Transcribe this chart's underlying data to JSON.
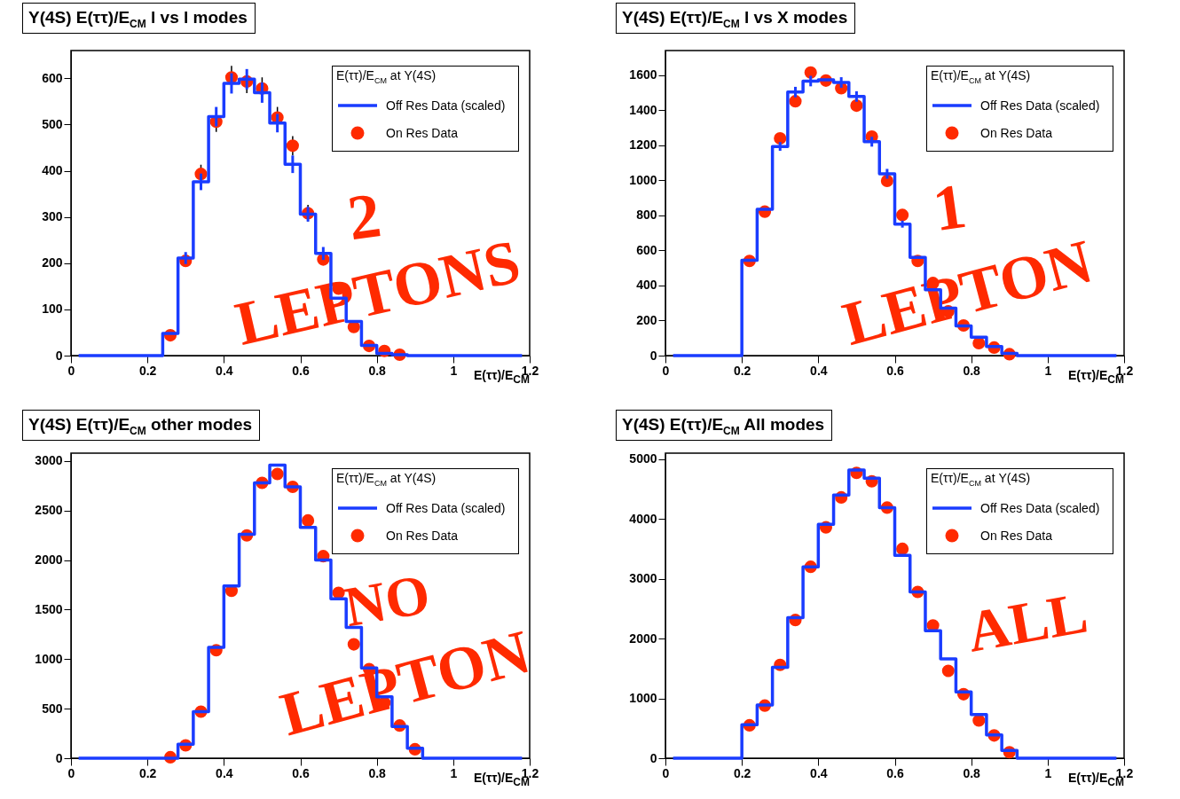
{
  "chart_data": [
    {
      "type": "step",
      "title": "Υ(4S) E(ττ)/E$_{CM}$  l vs l modes",
      "xlabel": "E(ττ)/E$_{CM}$",
      "legend_title": "E(ττ)/E$_{CM}$ at Υ(4S)",
      "legend": "top right",
      "annotations": [
        "2",
        "LEPTONS"
      ],
      "x": [
        0.02,
        0.06,
        0.1,
        0.14,
        0.18,
        0.22,
        0.26,
        0.3,
        0.34,
        0.38,
        0.42,
        0.46,
        0.5,
        0.54,
        0.58,
        0.62,
        0.66,
        0.7,
        0.74,
        0.78,
        0.82,
        0.86,
        0.9,
        0.94,
        0.98,
        1.02,
        1.06,
        1.1,
        1.14,
        1.18
      ],
      "xlim": [
        0,
        1.2
      ],
      "xticks": [
        0,
        0.2,
        0.4,
        0.6,
        0.8,
        1,
        1.2
      ],
      "ylim": [
        0,
        660
      ],
      "yticks": [
        0,
        100,
        200,
        300,
        400,
        500,
        600
      ],
      "series": [
        {
          "name": "Off Res Data (scaled)",
          "color": "#1a3cff",
          "values": [
            0,
            0,
            0,
            0,
            0,
            0,
            48,
            211,
            376,
            517,
            589,
            598,
            569,
            503,
            414,
            306,
            221,
            124,
            74,
            22,
            5,
            2,
            0,
            0,
            0,
            0,
            0,
            0,
            0,
            0
          ],
          "errors": [
            null,
            null,
            null,
            null,
            null,
            null,
            null,
            13,
            18,
            21,
            22,
            22,
            22,
            20,
            19,
            16,
            14,
            null,
            null,
            null,
            null,
            null,
            null,
            null,
            null,
            null,
            null,
            null,
            null,
            null
          ]
        },
        {
          "name": "On Res Data",
          "type": "scatter",
          "color": "#ff2a00",
          "marker": "circle",
          "x": [
            0.26,
            0.3,
            0.34,
            0.38,
            0.42,
            0.46,
            0.5,
            0.54,
            0.58,
            0.62,
            0.66,
            0.7,
            0.74,
            0.78,
            0.82,
            0.86
          ],
          "values": [
            44,
            205,
            393,
            506,
            602,
            593,
            578,
            515,
            454,
            308,
            208,
            145,
            62,
            21,
            10,
            2
          ],
          "errors": [
            null,
            null,
            20,
            22,
            25,
            25,
            24,
            23,
            21,
            18,
            null,
            null,
            null,
            null,
            null,
            null
          ]
        }
      ]
    },
    {
      "type": "step",
      "title": "Υ(4S) E(ττ)/E$_{CM}$  l vs X modes",
      "xlabel": "E(ττ)/E$_{CM}$",
      "legend_title": "E(ττ)/E$_{CM}$ at Υ(4S)",
      "legend": "top right",
      "annotations": [
        "1",
        "LEPTON"
      ],
      "x": [
        0.02,
        0.06,
        0.1,
        0.14,
        0.18,
        0.22,
        0.26,
        0.3,
        0.34,
        0.38,
        0.42,
        0.46,
        0.5,
        0.54,
        0.58,
        0.62,
        0.66,
        0.7,
        0.74,
        0.78,
        0.82,
        0.86,
        0.9,
        0.94,
        0.98,
        1.02,
        1.06,
        1.1,
        1.14,
        1.18
      ],
      "xlim": [
        0,
        1.2
      ],
      "xticks": [
        0,
        0.2,
        0.4,
        0.6,
        0.8,
        1,
        1.2
      ],
      "ylim": [
        0,
        1740
      ],
      "yticks": [
        0,
        200,
        400,
        600,
        800,
        1000,
        1200,
        1400,
        1600
      ],
      "series": [
        {
          "name": "Off Res Data (scaled)",
          "color": "#1a3cff",
          "values": [
            0,
            0,
            0,
            0,
            0,
            544,
            834,
            1193,
            1503,
            1566,
            1573,
            1558,
            1478,
            1220,
            1037,
            750,
            560,
            376,
            271,
            170,
            105,
            52,
            13,
            0,
            0,
            0,
            0,
            0,
            0,
            0
          ],
          "errors": [
            null,
            null,
            null,
            null,
            null,
            null,
            null,
            25,
            30,
            30,
            null,
            30,
            30,
            28,
            28,
            20,
            null,
            null,
            null,
            null,
            null,
            null,
            null,
            null,
            null,
            null,
            null,
            null,
            null,
            null
          ]
        },
        {
          "name": "On Res Data",
          "type": "scatter",
          "color": "#ff2a00",
          "marker": "circle",
          "x": [
            0.22,
            0.26,
            0.3,
            0.34,
            0.38,
            0.42,
            0.46,
            0.5,
            0.54,
            0.58,
            0.62,
            0.66,
            0.7,
            0.74,
            0.78,
            0.82,
            0.86,
            0.9
          ],
          "values": [
            540,
            821,
            1239,
            1451,
            1615,
            1569,
            1525,
            1426,
            1249,
            997,
            802,
            540,
            414,
            252,
            172,
            71,
            46,
            8
          ]
        }
      ]
    },
    {
      "type": "step",
      "title": "Υ(4S) E(ττ)/E$_{CM}$  other modes",
      "xlabel": "E(ττ)/E$_{CM}$",
      "legend_title": "E(ττ)/E$_{CM}$ at Υ(4S)",
      "legend": "top right",
      "annotations": [
        "NO",
        "LEPTON"
      ],
      "x": [
        0.02,
        0.06,
        0.1,
        0.14,
        0.18,
        0.22,
        0.26,
        0.3,
        0.34,
        0.38,
        0.42,
        0.46,
        0.5,
        0.54,
        0.58,
        0.62,
        0.66,
        0.7,
        0.74,
        0.78,
        0.82,
        0.86,
        0.9,
        0.94,
        0.98,
        1.02,
        1.06,
        1.1,
        1.14,
        1.18
      ],
      "xlim": [
        0,
        1.2
      ],
      "xticks": [
        0,
        0.2,
        0.4,
        0.6,
        0.8,
        1,
        1.2
      ],
      "ylim": [
        0,
        3080
      ],
      "yticks": [
        0,
        500,
        1000,
        1500,
        2000,
        2500,
        3000
      ],
      "series": [
        {
          "name": "Off Res Data (scaled)",
          "color": "#1a3cff",
          "values": [
            0,
            0,
            0,
            0,
            0,
            0,
            0,
            140,
            470,
            1120,
            1740,
            2260,
            2780,
            2960,
            2740,
            2330,
            2000,
            1610,
            1320,
            910,
            620,
            320,
            100,
            0,
            0,
            0,
            0,
            0,
            0,
            0
          ]
        },
        {
          "name": "On Res Data",
          "type": "scatter",
          "color": "#ff2a00",
          "marker": "circle",
          "x": [
            0.26,
            0.3,
            0.34,
            0.38,
            0.42,
            0.46,
            0.5,
            0.54,
            0.58,
            0.62,
            0.66,
            0.7,
            0.74,
            0.78,
            0.82,
            0.86,
            0.9
          ],
          "values": [
            10,
            130,
            470,
            1090,
            1690,
            2250,
            2780,
            2870,
            2740,
            2400,
            2040,
            1670,
            1150,
            900,
            560,
            330,
            90
          ]
        }
      ]
    },
    {
      "type": "step",
      "title": "Υ(4S) E(ττ)/E$_{CM}$  All modes",
      "xlabel": "E(ττ)/E$_{CM}$",
      "legend_title": "E(ττ)/E$_{CM}$ at Υ(4S)",
      "legend": "top right",
      "annotations": [
        "ALL"
      ],
      "x": [
        0.02,
        0.06,
        0.1,
        0.14,
        0.18,
        0.22,
        0.26,
        0.3,
        0.34,
        0.38,
        0.42,
        0.46,
        0.5,
        0.54,
        0.58,
        0.62,
        0.66,
        0.7,
        0.74,
        0.78,
        0.82,
        0.86,
        0.9,
        0.94,
        0.98,
        1.02,
        1.06,
        1.1,
        1.14,
        1.18
      ],
      "xlim": [
        0,
        1.2
      ],
      "xticks": [
        0,
        0.2,
        0.4,
        0.6,
        0.8,
        1,
        1.2
      ],
      "ylim": [
        0,
        5100
      ],
      "yticks": [
        0,
        1000,
        2000,
        3000,
        4000,
        5000
      ],
      "series": [
        {
          "name": "Off Res Data (scaled)",
          "color": "#1a3cff",
          "values": [
            0,
            0,
            0,
            0,
            0,
            560,
            890,
            1520,
            2350,
            3200,
            3910,
            4400,
            4820,
            4680,
            4190,
            3390,
            2780,
            2130,
            1660,
            1110,
            730,
            390,
            130,
            0,
            0,
            0,
            0,
            0,
            0,
            0
          ]
        },
        {
          "name": "On Res Data",
          "type": "scatter",
          "color": "#ff2a00",
          "marker": "circle",
          "x": [
            0.22,
            0.26,
            0.3,
            0.34,
            0.38,
            0.42,
            0.46,
            0.5,
            0.54,
            0.58,
            0.62,
            0.66,
            0.7,
            0.74,
            0.78,
            0.82,
            0.86,
            0.9
          ],
          "values": [
            550,
            880,
            1560,
            2310,
            3200,
            3860,
            4360,
            4770,
            4630,
            4190,
            3500,
            2780,
            2220,
            1460,
            1070,
            630,
            380,
            100
          ]
        }
      ]
    }
  ]
}
